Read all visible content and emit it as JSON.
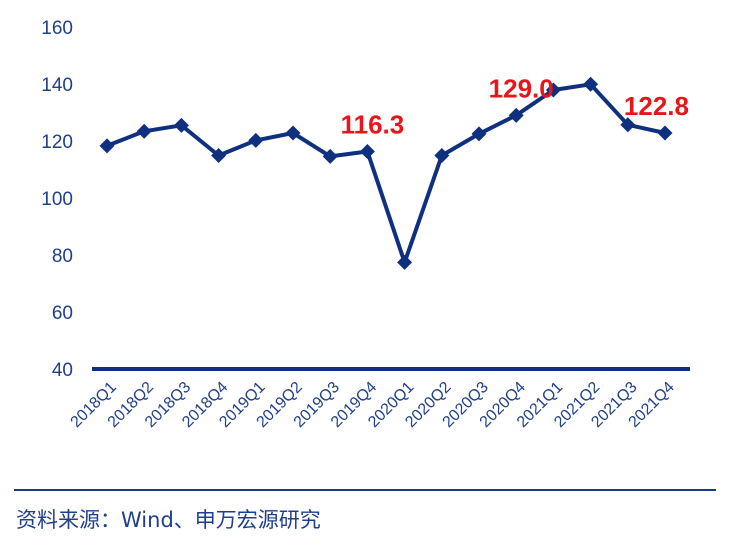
{
  "source": "资料来源：Wind、申万宏源研究",
  "colors": {
    "line": "#0f2f7f",
    "axis": "#0f2f7f",
    "annotation": "#e8161a",
    "text": "#1f3f8c"
  },
  "chart_data": {
    "type": "line",
    "title": "",
    "xlabel": "",
    "ylabel": "",
    "categories": [
      "2018Q1",
      "2018Q2",
      "2018Q3",
      "2018Q4",
      "2019Q1",
      "2019Q2",
      "2019Q3",
      "2019Q4",
      "2020Q1",
      "2020Q2",
      "2020Q3",
      "2020Q4",
      "2021Q1",
      "2021Q2",
      "2021Q3",
      "2021Q4"
    ],
    "series": [
      {
        "values": [
          118.3,
          123.4,
          125.5,
          114.9,
          120.2,
          122.8,
          114.6,
          116.3,
          77.4,
          114.9,
          122.5,
          129.0,
          137.9,
          139.9,
          125.7,
          122.8
        ]
      }
    ],
    "ylim": [
      40,
      160
    ],
    "yticks": [
      40,
      60,
      80,
      100,
      120,
      140,
      160
    ],
    "annotations": [
      {
        "category": "2019Q4",
        "text": "116.3"
      },
      {
        "category": "2020Q4",
        "text": "129.0"
      },
      {
        "category": "2021Q4",
        "text": "122.8"
      }
    ],
    "marker": "diamond",
    "grid": false
  }
}
